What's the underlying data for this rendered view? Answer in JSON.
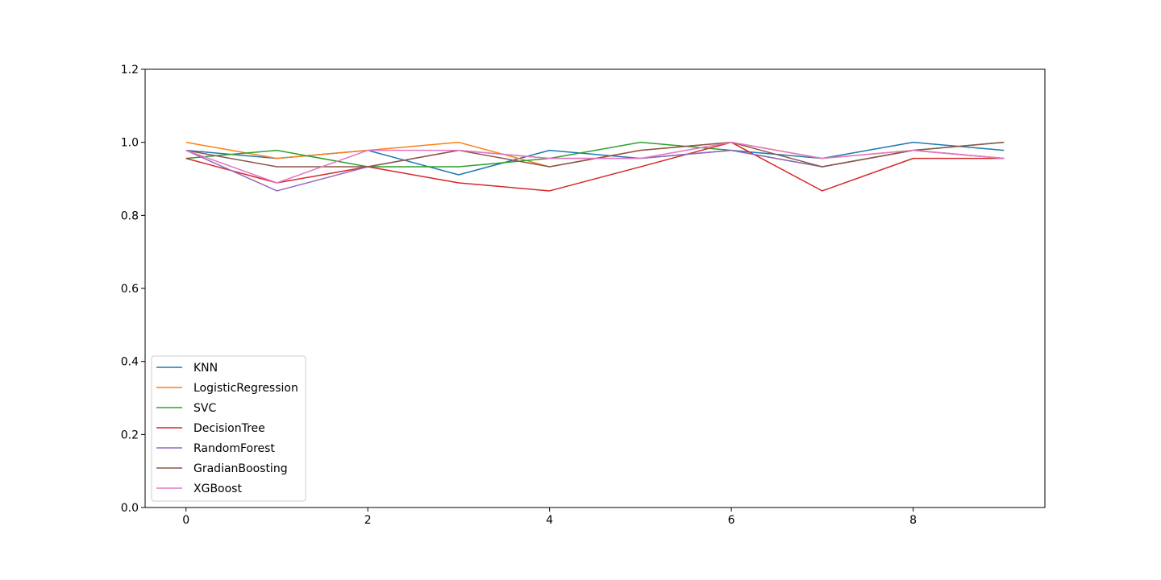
{
  "chart_data": {
    "type": "line",
    "title": "",
    "xlabel": "",
    "ylabel": "",
    "x": [
      0,
      1,
      2,
      3,
      4,
      5,
      6,
      7,
      8,
      9
    ],
    "xlim": [
      -0.45,
      9.45
    ],
    "ylim": [
      0.0,
      1.2
    ],
    "x_ticks": [
      0,
      2,
      4,
      6,
      8
    ],
    "x_tick_labels": [
      "0",
      "2",
      "4",
      "6",
      "8"
    ],
    "y_ticks": [
      0.0,
      0.2,
      0.4,
      0.6,
      0.8,
      1.0,
      1.2
    ],
    "y_tick_labels": [
      "0.0",
      "0.2",
      "0.4",
      "0.6",
      "0.8",
      "1.0",
      "1.2"
    ],
    "grid": false,
    "legend_position": "lower-left",
    "series": [
      {
        "name": "KNN",
        "color": "#1f77b4",
        "values": [
          0.978,
          0.956,
          0.978,
          0.911,
          0.978,
          0.956,
          0.978,
          0.956,
          1.0,
          0.978
        ]
      },
      {
        "name": "LogisticRegression",
        "color": "#ff7f0e",
        "values": [
          1.0,
          0.956,
          0.978,
          1.0,
          0.933,
          0.978,
          1.0,
          0.956,
          0.978,
          0.956
        ]
      },
      {
        "name": "SVC",
        "color": "#2ca02c",
        "values": [
          0.956,
          0.978,
          0.933,
          0.933,
          0.956,
          1.0,
          0.978,
          0.933,
          0.978,
          1.0
        ]
      },
      {
        "name": "DecisionTree",
        "color": "#d62728",
        "values": [
          0.956,
          0.889,
          0.933,
          0.889,
          0.867,
          0.933,
          1.0,
          0.867,
          0.956,
          0.956
        ]
      },
      {
        "name": "RandomForest",
        "color": "#9467bd",
        "values": [
          0.978,
          0.867,
          0.933,
          0.978,
          0.956,
          0.956,
          0.978,
          0.933,
          0.978,
          0.956
        ]
      },
      {
        "name": "GradianBoosting",
        "color": "#8c564b",
        "values": [
          0.978,
          0.933,
          0.933,
          0.978,
          0.933,
          0.978,
          1.0,
          0.933,
          0.978,
          1.0
        ]
      },
      {
        "name": "XGBoost",
        "color": "#e377c2",
        "values": [
          0.978,
          0.889,
          0.978,
          0.978,
          0.956,
          0.956,
          1.0,
          0.956,
          0.978,
          0.956
        ]
      }
    ]
  }
}
